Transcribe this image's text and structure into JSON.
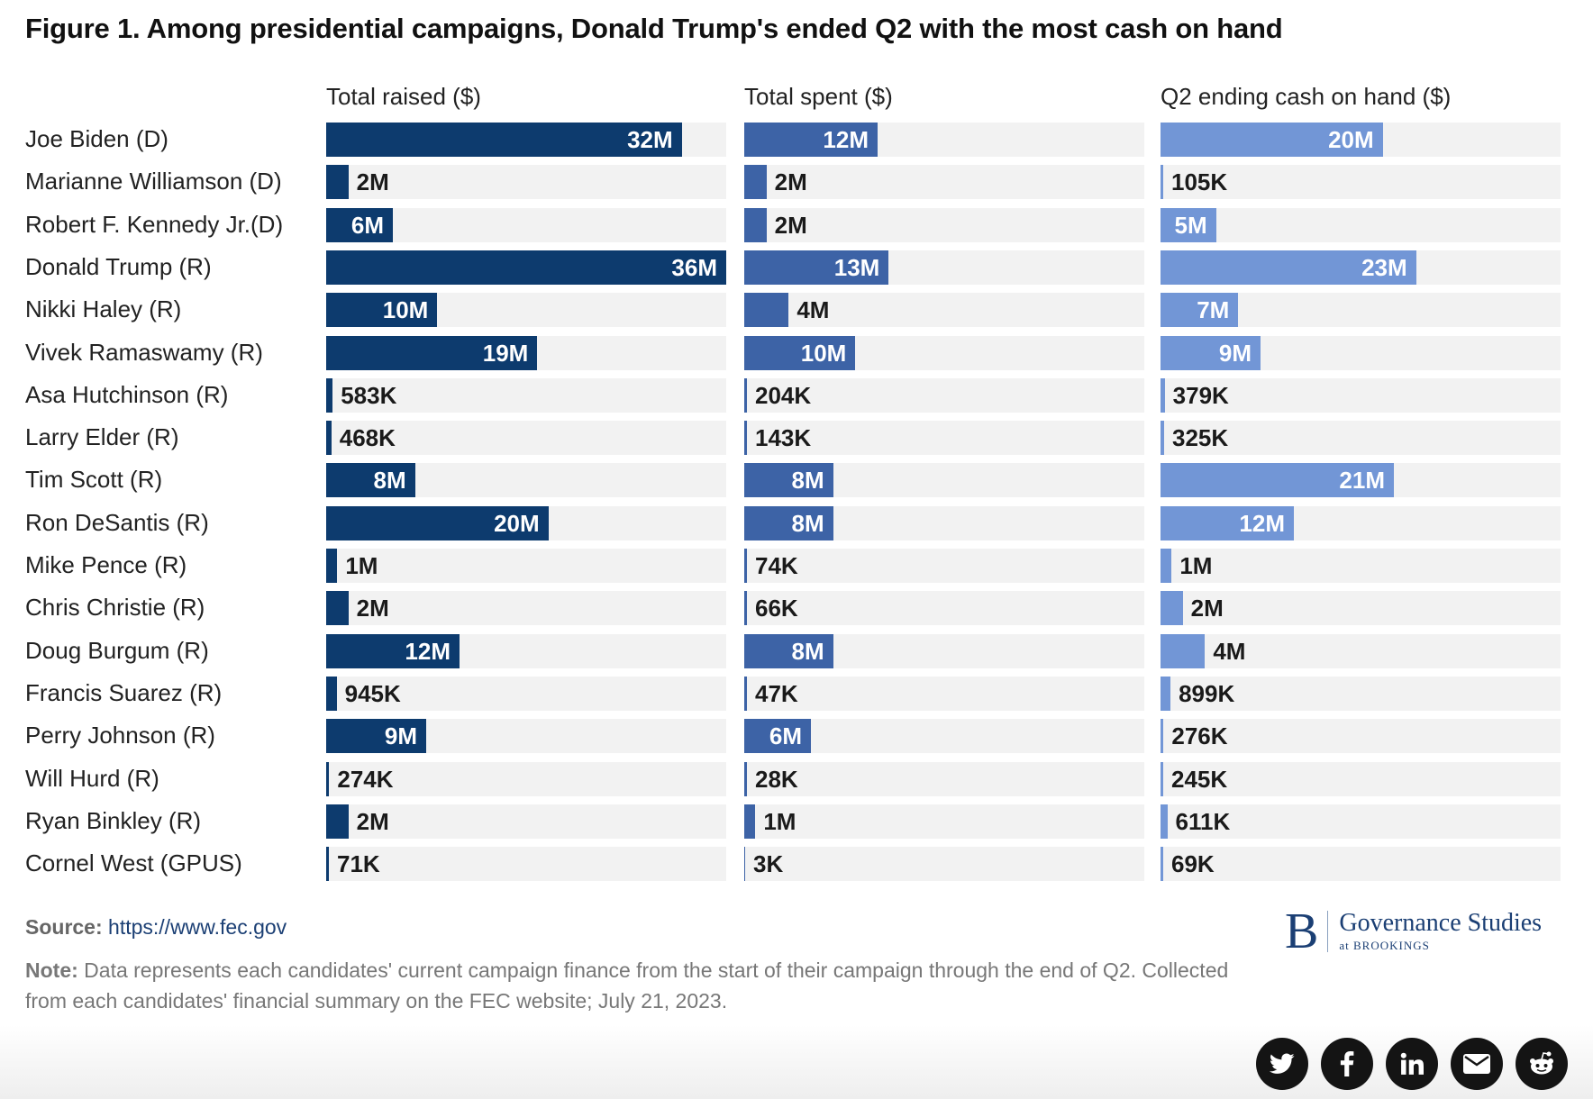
{
  "title": "Figure 1. Among presidential campaigns, Donald Trump's ended Q2 with the most cash on hand",
  "colors": {
    "raised": "#0d3b6e",
    "spent": "#3d63a6",
    "cash": "#7296d6",
    "track": "#f2f2f2"
  },
  "chart_data": {
    "type": "bar",
    "orientation": "horizontal",
    "categories": [
      "Joe Biden (D)",
      "Marianne Williamson (D)",
      "Robert F. Kennedy Jr.(D)",
      "Donald Trump (R)",
      "Nikki Haley (R)",
      "Vivek Ramaswamy (R)",
      "Asa Hutchinson (R)",
      "Larry Elder (R)",
      "Tim Scott (R)",
      "Ron DeSantis (R)",
      "Mike Pence (R)",
      "Chris Christie (R)",
      "Doug Burgum (R)",
      "Francis Suarez (R)",
      "Perry Johnson (R)",
      "Will Hurd (R)",
      "Ryan Binkley (R)",
      "Cornel West (GPUS)"
    ],
    "series": [
      {
        "name": "Total raised ($)",
        "max": 36,
        "values": [
          32,
          2,
          6,
          36,
          10,
          19,
          0.583,
          0.468,
          8,
          20,
          1,
          2,
          12,
          0.945,
          9,
          0.274,
          2,
          0.071
        ],
        "labels": [
          "32M",
          "2M",
          "6M",
          "36M",
          "10M",
          "19M",
          "583K",
          "468K",
          "8M",
          "20M",
          "1M",
          "2M",
          "12M",
          "945K",
          "9M",
          "274K",
          "2M",
          "71K"
        ]
      },
      {
        "name": "Total spent ($)",
        "max": 36,
        "values": [
          12,
          2,
          2,
          13,
          4,
          10,
          0.204,
          0.143,
          8,
          8,
          0.074,
          0.066,
          8,
          0.047,
          6,
          0.028,
          1,
          0.003
        ],
        "labels": [
          "12M",
          "2M",
          "2M",
          "13M",
          "4M",
          "10M",
          "204K",
          "143K",
          "8M",
          "8M",
          "74K",
          "66K",
          "8M",
          "47K",
          "6M",
          "28K",
          "1M",
          "3K"
        ]
      },
      {
        "name": "Q2 ending cash on hand ($)",
        "max": 36,
        "values": [
          20,
          0.105,
          5,
          23,
          7,
          9,
          0.379,
          0.325,
          21,
          12,
          1,
          2,
          4,
          0.899,
          0.276,
          0.245,
          0.611,
          0.069
        ],
        "labels": [
          "20M",
          "105K",
          "5M",
          "23M",
          "7M",
          "9M",
          "379K",
          "325K",
          "21M",
          "12M",
          "1M",
          "2M",
          "4M",
          "899K",
          "276K",
          "245K",
          "611K",
          "69K"
        ]
      }
    ]
  },
  "footer": {
    "source_label": "Source:",
    "source_link": "https://www.fec.gov",
    "note_label": "Note:",
    "note_text": " Data represents each candidates' current campaign finance from the start of their campaign through the end of Q2. Collected from each candidates' financial summary on the FEC website; July 21, 2023."
  },
  "logo": {
    "letter": "B",
    "main": "Governance Studies",
    "sub": "at BROOKINGS"
  },
  "share": [
    {
      "icon": "twitter-icon"
    },
    {
      "icon": "facebook-icon"
    },
    {
      "icon": "linkedin-icon"
    },
    {
      "icon": "email-icon"
    },
    {
      "icon": "reddit-icon"
    }
  ]
}
